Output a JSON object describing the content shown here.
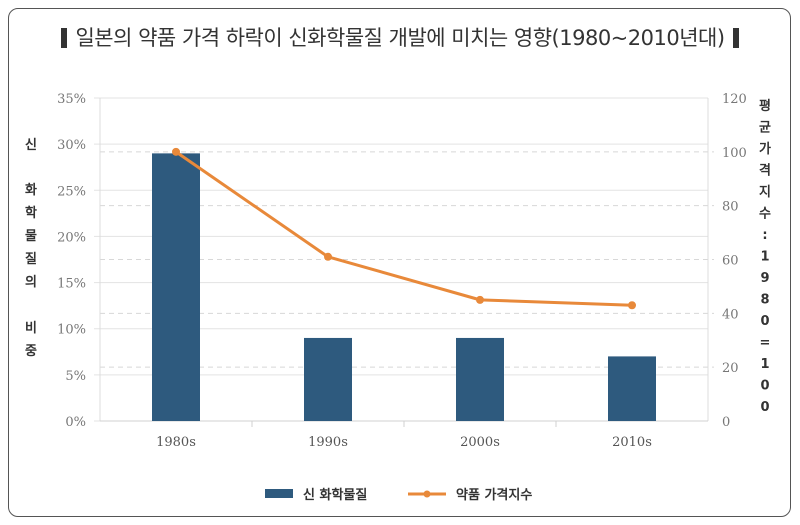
{
  "chart_data": {
    "type": "bar",
    "title": "일본의 약품 가격 하락이 신화학물질 개발에 미치는 영향(1980~2010년대)",
    "categories": [
      "1980s",
      "1990s",
      "2000s",
      "2010s"
    ],
    "series": [
      {
        "name": "신 화학물질",
        "type": "bar",
        "axis": "left",
        "color": "#2e5a7e",
        "values": [
          29,
          9,
          9,
          7
        ]
      },
      {
        "name": "약품 가격지수",
        "type": "line",
        "axis": "right",
        "color": "#e8893a",
        "values": [
          100,
          61,
          45,
          43
        ]
      }
    ],
    "y_left": {
      "label_chars": [
        "신",
        "화",
        "학",
        "물",
        "질",
        "의",
        "비",
        "중"
      ],
      "ylim": [
        0,
        35
      ],
      "ticks": [
        "0%",
        "5%",
        "10%",
        "15%",
        "20%",
        "25%",
        "30%",
        "35%"
      ]
    },
    "y_right": {
      "label_chars": [
        "평",
        "균",
        "가",
        "격",
        "지",
        "수",
        ":",
        "1",
        "9",
        "8",
        "0",
        "=",
        "1",
        "0",
        "0"
      ],
      "ylim": [
        0,
        120
      ],
      "ticks": [
        "0",
        "20",
        "40",
        "60",
        "80",
        "100",
        "120"
      ]
    },
    "grid": true,
    "legend_position": "bottom-center"
  }
}
